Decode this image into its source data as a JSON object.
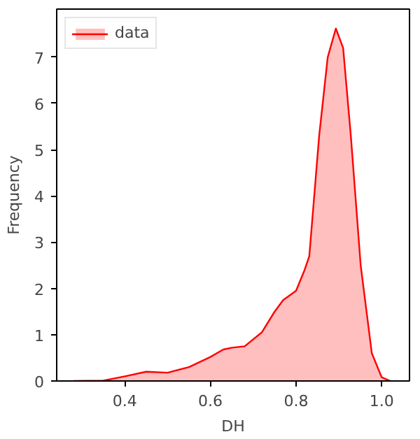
{
  "chart_data": {
    "type": "area",
    "xlabel": "DH",
    "ylabel": "Frequency",
    "legend": "top left",
    "grid": false,
    "xlim": [
      0.241,
      1.065
    ],
    "ylim": [
      0,
      8.04
    ],
    "xticks": [
      {
        "value": 0.4,
        "label": "0.4"
      },
      {
        "value": 0.6,
        "label": "0.6"
      },
      {
        "value": 0.8,
        "label": "0.8"
      },
      {
        "value": 1.0,
        "label": "1.0"
      }
    ],
    "yticks": [
      0,
      1,
      2,
      3,
      4,
      5,
      6,
      7
    ],
    "series": [
      {
        "name": "data",
        "color": "#ff0000",
        "x": [
          0.28,
          0.35,
          0.4,
          0.45,
          0.5,
          0.55,
          0.6,
          0.63,
          0.65,
          0.68,
          0.72,
          0.75,
          0.77,
          0.8,
          0.82,
          0.831,
          0.854,
          0.874,
          0.893,
          0.91,
          0.928,
          0.951,
          0.977,
          1.0,
          1.02
        ],
        "values": [
          0,
          0.01,
          0.1,
          0.2,
          0.18,
          0.3,
          0.52,
          0.68,
          0.72,
          0.75,
          1.05,
          1.5,
          1.75,
          1.95,
          2.4,
          2.7,
          5.3,
          7.0,
          7.62,
          7.2,
          5.3,
          2.5,
          0.6,
          0.08,
          0
        ]
      }
    ]
  }
}
